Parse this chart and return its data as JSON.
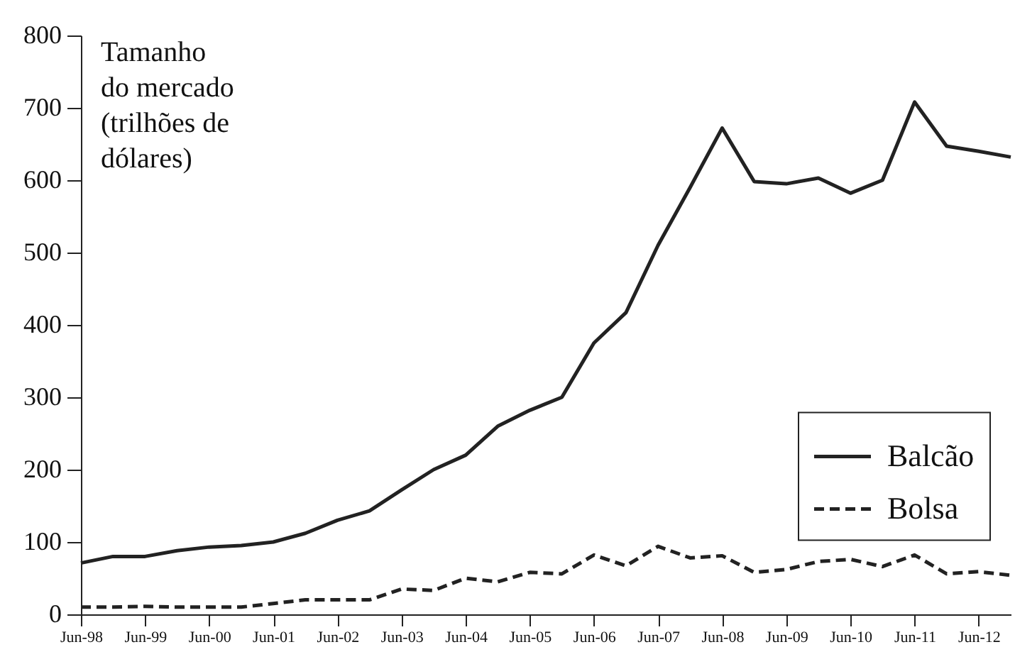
{
  "chart_data": {
    "type": "line",
    "ylabel": "Tamanho\ndo mercado\n(trilhões de\ndólares)",
    "categories": [
      "Jun-98",
      null,
      "Jun-99",
      null,
      "Jun-00",
      null,
      "Jun-01",
      null,
      "Jun-02",
      null,
      "Jun-03",
      null,
      "Jun-04",
      null,
      "Jun-05",
      null,
      "Jun-06",
      null,
      "Jun-07",
      null,
      "Jun-08",
      null,
      "Jun-09",
      null,
      "Jun-10",
      null,
      "Jun-11",
      null,
      "Jun-12",
      null
    ],
    "series": [
      {
        "name": "Balcão",
        "color": "#222222",
        "line_style": "solid",
        "values": [
          71,
          80,
          80,
          88,
          93,
          95,
          100,
          112,
          130,
          143,
          172,
          200,
          220,
          260,
          282,
          300,
          375,
          417,
          510,
          590,
          672,
          598,
          595,
          603,
          582,
          600,
          708,
          647,
          640,
          632
        ]
      },
      {
        "name": "Bolsa",
        "color": "#222222",
        "line_style": "dashed",
        "values": [
          10,
          10,
          11,
          10,
          10,
          10,
          15,
          20,
          20,
          20,
          35,
          33,
          50,
          45,
          58,
          56,
          82,
          67,
          94,
          78,
          81,
          58,
          62,
          73,
          76,
          66,
          82,
          56,
          59,
          54
        ]
      }
    ],
    "ylim": [
      0,
      800
    ],
    "yticks": [
      0,
      100,
      200,
      300,
      400,
      500,
      600,
      700,
      800
    ],
    "legend": "right",
    "grid": false
  }
}
